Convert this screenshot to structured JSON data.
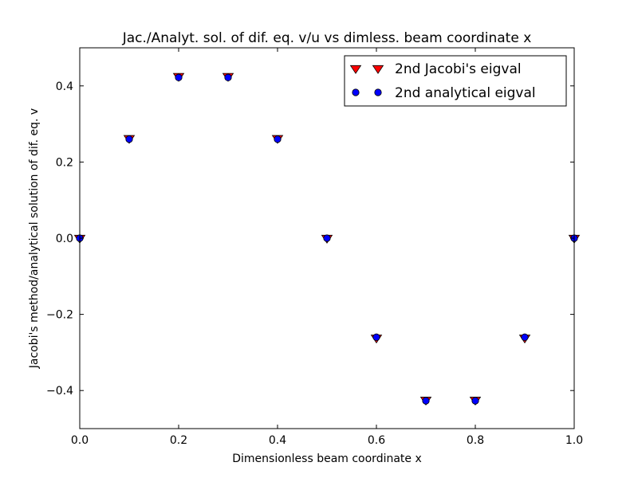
{
  "chart_data": {
    "type": "scatter",
    "title": "Jac./Analyt. sol. of dif. eq. v/u vs dimless. beam coordinate x",
    "xlabel": "Dimensionless beam coordinate x",
    "ylabel": "Jacobi's method/analytical solution of dif. eq. v",
    "xlim": [
      0.0,
      1.0
    ],
    "ylim": [
      -0.5,
      0.5
    ],
    "x_ticks": [
      0.0,
      0.2,
      0.4,
      0.6,
      0.8,
      1.0
    ],
    "x_tick_labels": [
      "0.0",
      "0.2",
      "0.4",
      "0.6",
      "0.8",
      "1.0"
    ],
    "y_ticks": [
      -0.4,
      -0.2,
      0.0,
      0.2,
      0.4
    ],
    "y_tick_labels": [
      "−0.4",
      "−0.2",
      "0.0",
      "0.2",
      "0.4"
    ],
    "grid": false,
    "legend_position": "top-right",
    "series": [
      {
        "name": "2nd Jacobi's eigval",
        "marker": "triangle-down",
        "color": "#ff0000",
        "x": [
          0.0,
          0.1,
          0.2,
          0.3,
          0.4,
          0.5,
          0.6,
          0.7,
          0.8,
          0.9,
          1.0
        ],
        "y": [
          0.0,
          0.262,
          0.425,
          0.425,
          0.262,
          0.0,
          -0.262,
          -0.425,
          -0.425,
          -0.262,
          0.0
        ]
      },
      {
        "name": "2nd analytical eigval",
        "marker": "circle",
        "color": "#0000ff",
        "x": [
          0.0,
          0.1,
          0.2,
          0.3,
          0.4,
          0.5,
          0.6,
          0.7,
          0.8,
          0.9,
          1.0
        ],
        "y": [
          0.0,
          0.26,
          0.422,
          0.422,
          0.26,
          0.0,
          -0.26,
          -0.427,
          -0.427,
          -0.26,
          0.0
        ]
      }
    ]
  }
}
